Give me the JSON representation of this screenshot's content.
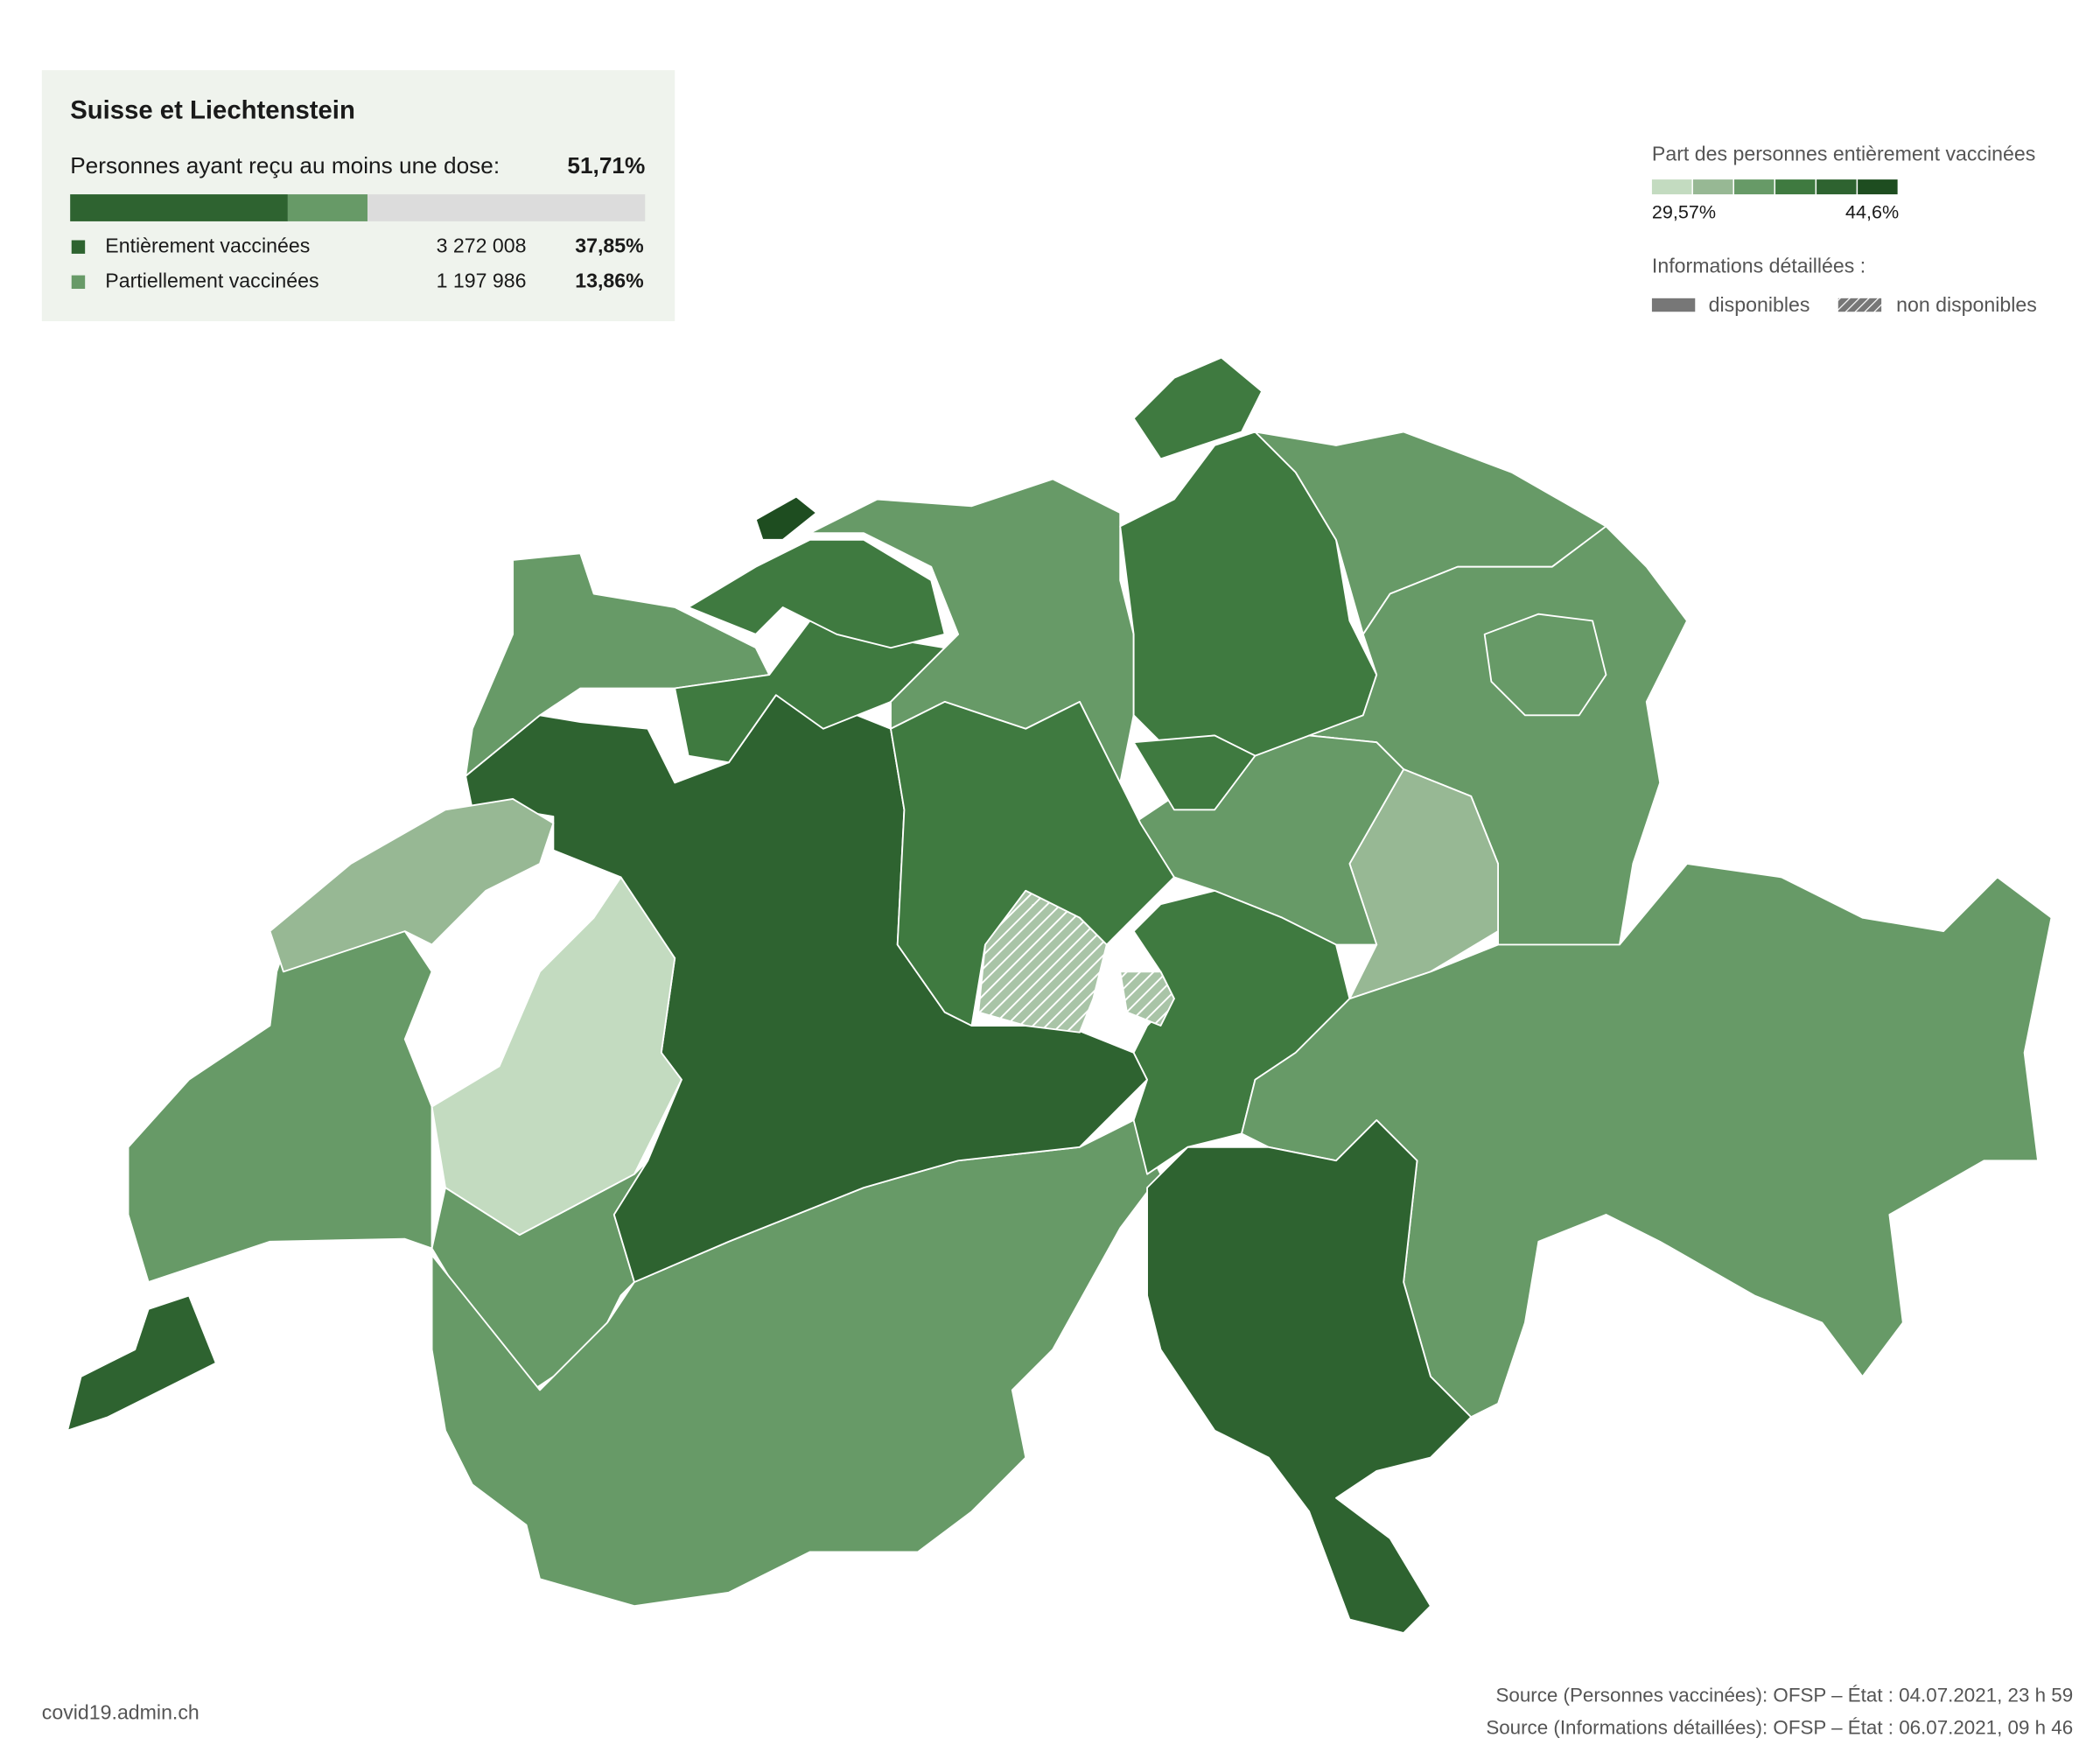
{
  "summary": {
    "title": "Suisse et Liechtenstein",
    "dose_label": "Personnes ayant reçu au moins une dose:",
    "dose_total": "51,71%",
    "rows": [
      {
        "label": "Entièrement vaccinées",
        "count": "3 272 008",
        "share": "37,85%",
        "color": "#2e6330"
      },
      {
        "label": "Partiellement vaccinées",
        "count": "1 197 986",
        "share": "13,86%",
        "color": "#679a67"
      }
    ]
  },
  "legend": {
    "title": "Part des personnes entièrement vaccinées",
    "min_label": "29,57%",
    "max_label": "44,6%",
    "colors": [
      "#c3dbc0",
      "#97b894",
      "#679a67",
      "#3f7a40",
      "#2e6330",
      "#1e4d20"
    ]
  },
  "details": {
    "title": "Informations détaillées :",
    "available": "disponibles",
    "unavailable": "non disponibles"
  },
  "footer": {
    "site": "covid19.admin.ch",
    "sources": [
      "Source (Personnes vaccinées): OFSP – État : 04.07.2021, 23 h 59",
      "Source (Informations détaillées): OFSP – État : 06.07.2021, 09 h 46"
    ]
  }
}
